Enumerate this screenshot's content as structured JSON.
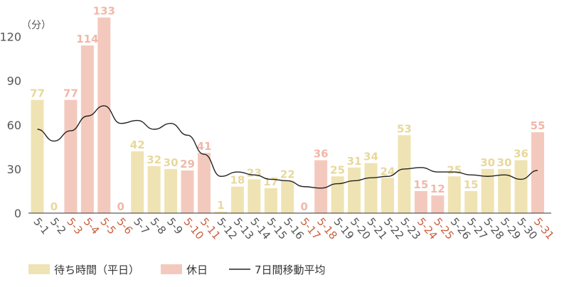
{
  "colors": {
    "weekday_bar": "#efe3b3",
    "weekday_label": "#e8d89a",
    "holiday_bar": "#f4c9bd",
    "holiday_label": "#f0b8a8",
    "holiday_tick": "#c8603e",
    "weekday_tick": "#555555",
    "axis_label": "#555555",
    "ma_line": "#222222",
    "baseline": "#333333"
  },
  "chart_data": {
    "type": "bar",
    "unit_label": "（分）",
    "ylim": [
      0,
      135
    ],
    "yticks": [
      0,
      30,
      60,
      90,
      120
    ],
    "grid": false,
    "legend_position": "bottom-left",
    "categories": [
      "5-1",
      "5-2",
      "5-3",
      "5-4",
      "5-5",
      "5-6",
      "5-7",
      "5-8",
      "5-9",
      "5-10",
      "5-11",
      "5-12",
      "5-13",
      "5-14",
      "5-15",
      "5-16",
      "5-17",
      "5-18",
      "5-19",
      "5-20",
      "5-21",
      "5-22",
      "5-23",
      "5-24",
      "5-25",
      "5-26",
      "5-27",
      "5-28",
      "5-29",
      "5-30",
      "5-31"
    ],
    "values": [
      77,
      0,
      77,
      114,
      133,
      0,
      42,
      32,
      30,
      29,
      41,
      1,
      18,
      23,
      17,
      22,
      0,
      36,
      25,
      31,
      34,
      24,
      53,
      15,
      12,
      25,
      15,
      30,
      30,
      36,
      55
    ],
    "holiday": [
      false,
      false,
      true,
      true,
      true,
      true,
      false,
      false,
      false,
      true,
      true,
      false,
      false,
      false,
      false,
      false,
      true,
      true,
      false,
      false,
      false,
      false,
      false,
      true,
      true,
      false,
      false,
      false,
      false,
      false,
      true
    ],
    "moving_average": [
      57,
      49,
      56,
      66,
      73,
      61,
      63,
      57,
      61,
      53,
      40,
      25,
      28,
      26,
      23,
      22,
      18,
      17,
      20,
      22,
      24,
      25,
      30,
      31,
      28,
      28,
      26,
      25,
      26,
      23,
      29
    ],
    "series": [
      {
        "name": "待ち時間（平日）",
        "kind": "bar",
        "role": "weekday"
      },
      {
        "name": "休日",
        "kind": "bar",
        "role": "holiday"
      },
      {
        "name": "7日間移動平均",
        "kind": "line",
        "role": "moving_average"
      }
    ]
  }
}
